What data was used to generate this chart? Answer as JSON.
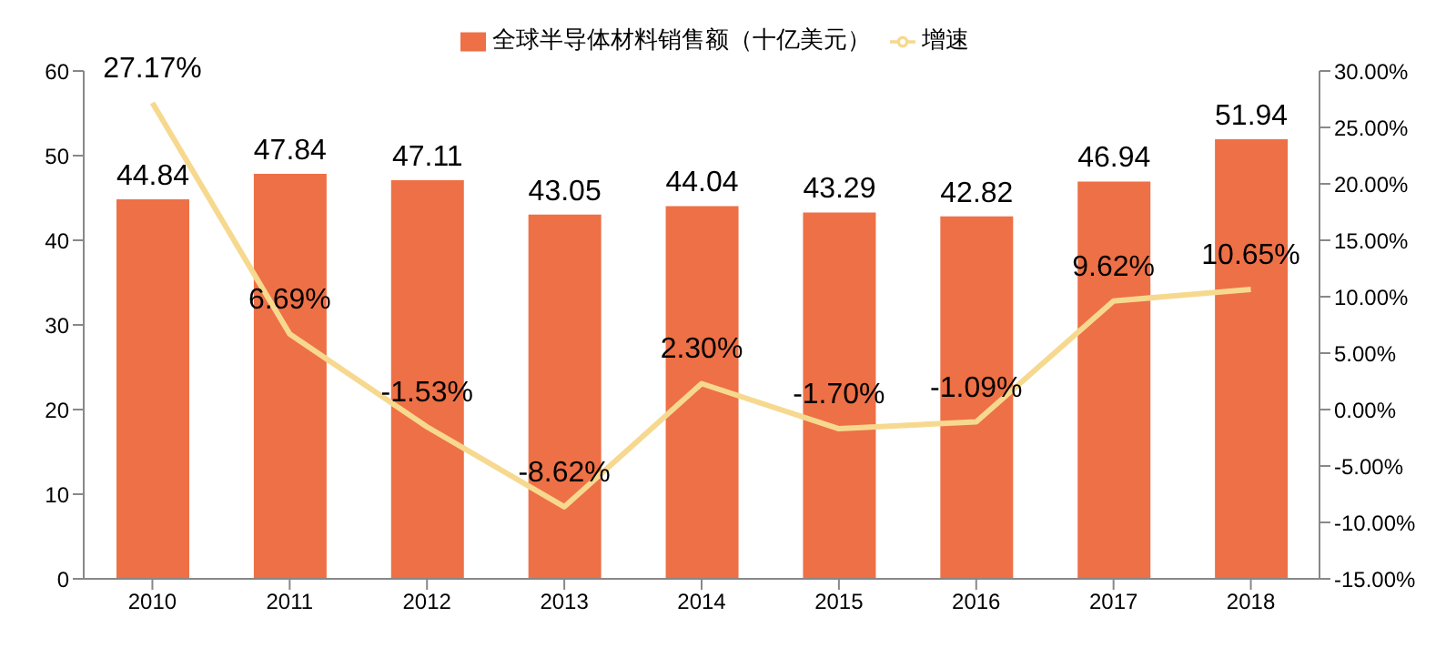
{
  "chart_data": {
    "type": "bar",
    "categories": [
      "2010",
      "2011",
      "2012",
      "2013",
      "2014",
      "2015",
      "2016",
      "2017",
      "2018"
    ],
    "series": [
      {
        "name": "全球半导体材料销售额（十亿美元）",
        "color": "#ee7046",
        "values": [
          44.84,
          47.84,
          47.11,
          43.05,
          44.04,
          43.29,
          42.82,
          46.94,
          51.94
        ],
        "value_labels": [
          "44.84",
          "47.84",
          "47.11",
          "43.05",
          "44.04",
          "43.29",
          "42.82",
          "46.94",
          "51.94"
        ]
      },
      {
        "name": "增速",
        "type": "line",
        "axis": "y2",
        "color": "#f6d98f",
        "values": [
          27.17,
          6.69,
          -1.53,
          -8.62,
          2.3,
          -1.7,
          -1.09,
          9.62,
          10.65
        ],
        "value_labels": [
          "27.17%",
          "6.69%",
          "-1.53%",
          "-8.62%",
          "2.30%",
          "-1.70%",
          "-1.09%",
          "9.62%",
          "10.65%"
        ]
      }
    ],
    "ylim": [
      0,
      60
    ],
    "yticks": [
      0,
      10,
      20,
      30,
      40,
      50,
      60
    ],
    "y2lim": [
      -15,
      30
    ],
    "y2ticks": [
      {
        "value": -15,
        "label": "-15.00%"
      },
      {
        "value": -10,
        "label": "-10.00%"
      },
      {
        "value": -5,
        "label": "-5.00%"
      },
      {
        "value": 0,
        "label": "0.00%"
      },
      {
        "value": 5,
        "label": "5.00%"
      },
      {
        "value": 10,
        "label": "10.00%"
      },
      {
        "value": 15,
        "label": "15.00%"
      },
      {
        "value": 20,
        "label": "20.00%"
      },
      {
        "value": 25,
        "label": "25.00%"
      },
      {
        "value": 30,
        "label": "30.00%"
      }
    ],
    "legend": "top",
    "grid": false,
    "marker": "none"
  }
}
